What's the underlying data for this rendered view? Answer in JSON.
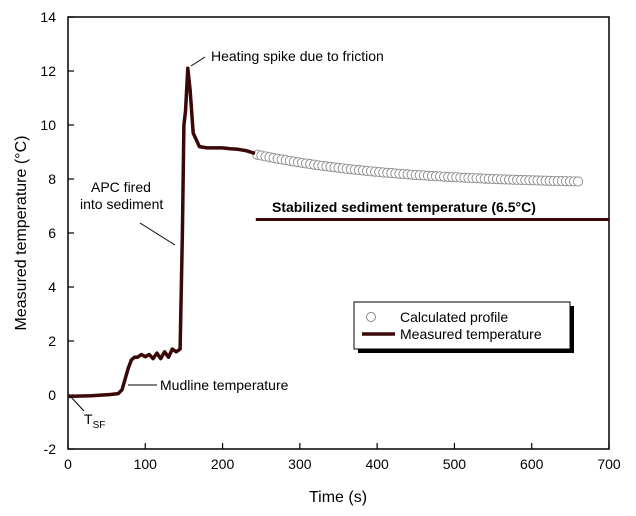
{
  "chart_data": {
    "type": "line",
    "xlabel": "Time (s)",
    "ylabel": "Measured temperature (°C)",
    "xlim": [
      0,
      700
    ],
    "ylim": [
      -2,
      14
    ],
    "x_ticks": [
      0,
      100,
      200,
      300,
      400,
      500,
      600,
      700
    ],
    "y_ticks": [
      -2,
      0,
      2,
      4,
      6,
      8,
      10,
      12,
      14
    ],
    "grid": false,
    "legend_position": "lower-right",
    "colors": {
      "measured": "#3a0808",
      "calculated_marker_stroke": "#8a8a8a",
      "stabilized": "#3a0808"
    },
    "series": [
      {
        "name": "Measured temperature",
        "type": "line",
        "x": [
          0,
          30,
          55,
          65,
          70,
          74,
          78,
          82,
          86,
          90,
          95,
          100,
          105,
          110,
          115,
          120,
          125,
          130,
          135,
          140,
          145,
          148,
          150,
          152,
          155,
          158,
          162,
          170,
          180,
          200,
          210,
          220,
          230,
          242
        ],
        "y": [
          -0.05,
          -0.03,
          0.02,
          0.05,
          0.2,
          0.6,
          1.0,
          1.3,
          1.4,
          1.4,
          1.5,
          1.42,
          1.5,
          1.35,
          1.55,
          1.35,
          1.6,
          1.4,
          1.7,
          1.6,
          1.7,
          6.0,
          10.0,
          10.5,
          12.1,
          11.3,
          9.7,
          9.2,
          9.15,
          9.15,
          9.12,
          9.1,
          9.05,
          8.95
        ]
      },
      {
        "name": "Calculated profile",
        "type": "scatter",
        "x_start": 245,
        "x_end": 660,
        "count": 80,
        "y_start": 8.9,
        "y_end": 7.8
      },
      {
        "name": "Stabilized sediment temperature",
        "type": "hline",
        "y": 6.5,
        "x_start": 243,
        "x_end": 700
      }
    ],
    "annotations": {
      "spike": "Heating spike due to friction",
      "apc_line1": "APC fired",
      "apc_line2": "into sediment",
      "stabilized": "Stabilized sediment temperature (6.5°C)",
      "mudline": "Mudline temperature",
      "tsf_main": "T",
      "tsf_sub": "SF"
    },
    "legend": {
      "calculated": "Calculated profile",
      "measured": "Measured temperature"
    }
  }
}
